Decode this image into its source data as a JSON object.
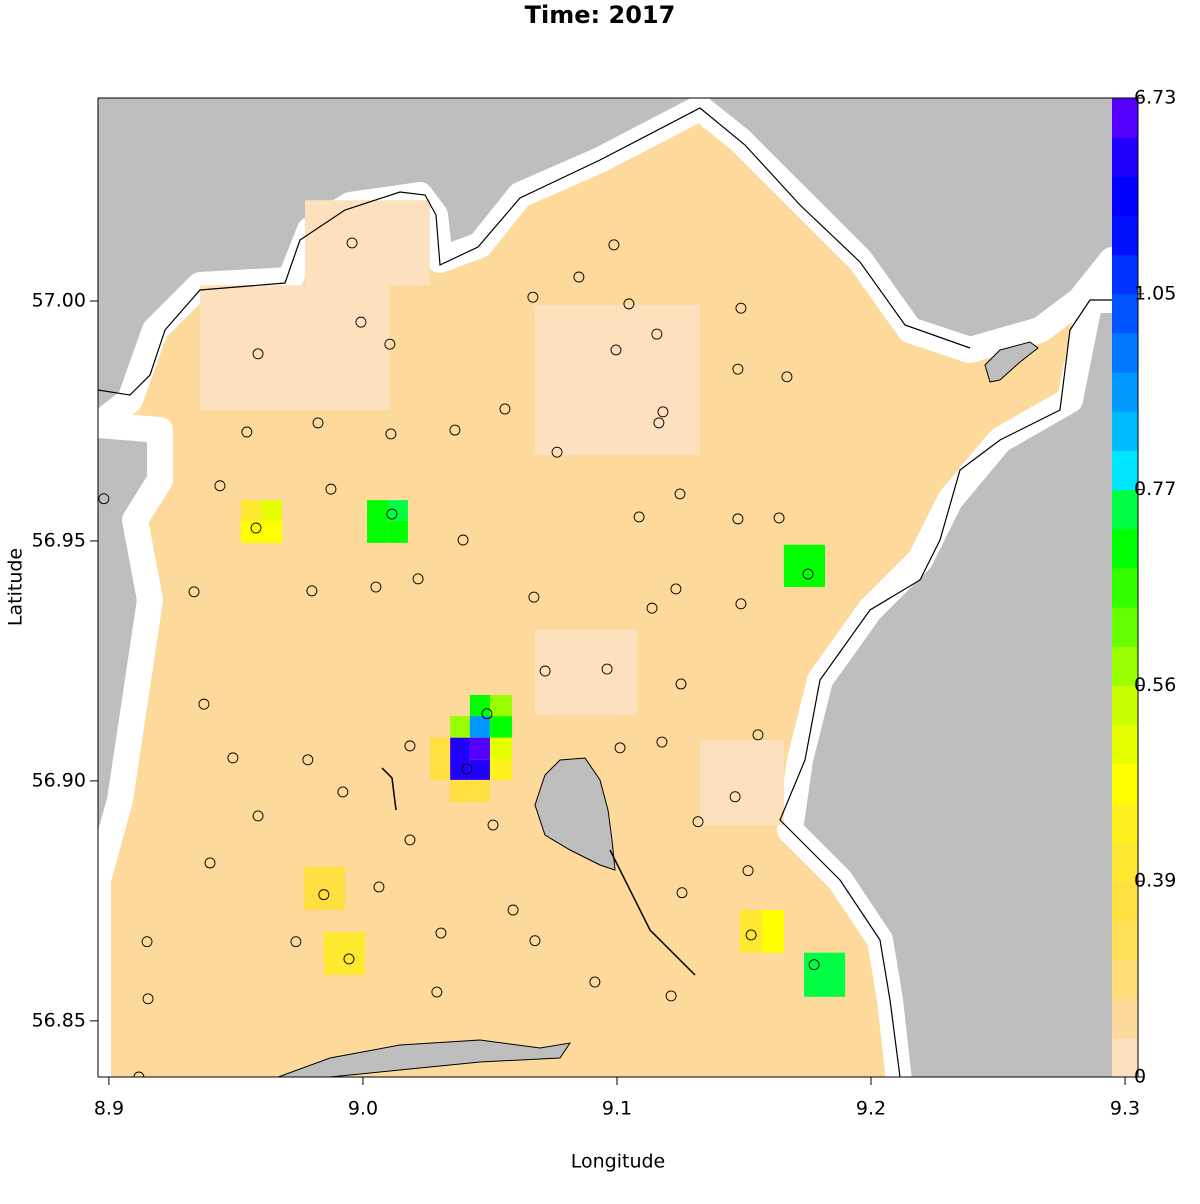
{
  "chart_data": {
    "type": "raster_map",
    "title": "Time: 2017",
    "x_label": "Longitude",
    "y_label": "Latitude",
    "xlim": [
      8.8957,
      9.3051
    ],
    "ylim": [
      56.8383,
      57.0423
    ],
    "xticks": [
      8.9,
      {
        "value": 9.0,
        "label": "9.0"
      },
      9.1,
      9.2,
      9.3
    ],
    "yticks": [
      56.85,
      {
        "value": 56.9,
        "label": "56.90"
      },
      56.95,
      {
        "value": 57.0,
        "label": "57.00"
      }
    ],
    "colorbar": {
      "ticks": [
        0,
        0.39,
        0.56,
        0.77,
        1.05,
        6.73
      ],
      "colors": [
        "#fde1bf",
        "#fdd99b",
        "#fedc78",
        "#ffdf55",
        "#ffe040",
        "#ffe830",
        "#fff020",
        "#ffff00",
        "#e6ff00",
        "#c8ff00",
        "#99ff00",
        "#66ff00",
        "#33ff00",
        "#00ff00",
        "#00ff44",
        "#00e5ff",
        "#00bbff",
        "#0099ff",
        "#0077ff",
        "#0055ff",
        "#0033ff",
        "#0011ff",
        "#0000ff",
        "#2200ff",
        "#5500ff"
      ]
    },
    "cells": [
      {
        "lon": [
          8.9358,
          9.0106
        ],
        "lat": [
          56.9773,
          57.0033
        ],
        "value": 0.02
      },
      {
        "lon": [
          8.9772,
          9.0264
        ],
        "lat": [
          57.0033,
          57.021
        ],
        "value": 0.02
      },
      {
        "lon": [
          9.0677,
          9.1327
        ],
        "lat": [
          56.9679,
          56.9992
        ],
        "value": 0.02
      },
      {
        "lon": [
          9.0677,
          9.1079
        ],
        "lat": [
          56.9138,
          56.9315
        ],
        "value": 0.02
      },
      {
        "lon": [
          9.1327,
          9.1657
        ],
        "lat": [
          56.8908,
          56.9085
        ],
        "value": 0.02
      },
      {
        "lon": [
          8.952,
          8.9602
        ],
        "lat": [
          56.9542,
          56.9585
        ],
        "value": 0.42
      },
      {
        "lon": [
          8.9602,
          8.9681
        ],
        "lat": [
          56.9542,
          56.9585
        ],
        "value": 0.52
      },
      {
        "lon": [
          8.952,
          8.9602
        ],
        "lat": [
          56.9496,
          56.9542
        ],
        "value": 0.47
      },
      {
        "lon": [
          8.9602,
          8.9681
        ],
        "lat": [
          56.9496,
          56.9542
        ],
        "value": 0.47
      },
      {
        "lon": [
          9.0016,
          9.0098
        ],
        "lat": [
          56.9496,
          56.9585
        ],
        "value": 0.72
      },
      {
        "lon": [
          9.0098,
          9.0177
        ],
        "lat": [
          56.9542,
          56.9585
        ],
        "value": 0.75
      },
      {
        "lon": [
          9.0098,
          9.0177
        ],
        "lat": [
          56.9496,
          56.9542
        ],
        "value": 0.7
      },
      {
        "lon": [
          9.1657,
          9.1819
        ],
        "lat": [
          56.9404,
          56.9492
        ],
        "value": 0.72
      },
      {
        "lon": [
          9.0421,
          9.05
        ],
        "lat": [
          56.9135,
          56.9179
        ],
        "value": 0.7
      },
      {
        "lon": [
          9.05,
          9.0587
        ],
        "lat": [
          56.9135,
          56.9179
        ],
        "value": 0.6
      },
      {
        "lon": [
          9.0343,
          9.0421
        ],
        "lat": [
          56.909,
          56.9135
        ],
        "value": 0.6
      },
      {
        "lon": [
          9.0421,
          9.05
        ],
        "lat": [
          56.909,
          56.9135
        ],
        "value": 0.93
      },
      {
        "lon": [
          9.05,
          9.0587
        ],
        "lat": [
          56.909,
          56.9135
        ],
        "value": 0.72
      },
      {
        "lon": [
          9.0343,
          9.0421
        ],
        "lat": [
          56.9002,
          56.909
        ],
        "value": 5.0
      },
      {
        "lon": [
          9.0421,
          9.05
        ],
        "lat": [
          56.9044,
          56.909
        ],
        "value": 6.5
      },
      {
        "lon": [
          9.0421,
          9.05
        ],
        "lat": [
          56.9002,
          56.9044
        ],
        "value": 5.0
      },
      {
        "lon": [
          9.0264,
          9.0343
        ],
        "lat": [
          56.9002,
          56.909
        ],
        "value": 0.38
      },
      {
        "lon": [
          9.05,
          9.0587
        ],
        "lat": [
          56.9044,
          56.909
        ],
        "value": 0.52
      },
      {
        "lon": [
          9.05,
          9.0587
        ],
        "lat": [
          56.9002,
          56.9044
        ],
        "value": 0.44
      },
      {
        "lon": [
          9.0343,
          9.05
        ],
        "lat": [
          56.8956,
          56.9002
        ],
        "value": 0.33
      },
      {
        "lon": [
          8.9768,
          8.9929
        ],
        "lat": [
          56.8731,
          56.8821
        ],
        "value": 0.37
      },
      {
        "lon": [
          8.9846,
          9.0008
        ],
        "lat": [
          56.8596,
          56.8685
        ],
        "value": 0.4
      },
      {
        "lon": [
          9.1484,
          9.1571
        ],
        "lat": [
          56.8642,
          56.8731
        ],
        "value": 0.42
      },
      {
        "lon": [
          9.1571,
          9.1657
        ],
        "lat": [
          56.8642,
          56.8731
        ],
        "value": 0.46
      },
      {
        "lon": [
          9.1736,
          9.1898
        ],
        "lat": [
          56.855,
          56.8642
        ],
        "value": 0.75
      }
    ],
    "stations": {
      "lon": [
        8.9957,
        9.0988,
        9.085,
        9.0669,
        9.1047,
        9.1488,
        8.9992,
        9.0106,
        9.0996,
        9.1157,
        8.9587,
        9.1476,
        9.1669,
        9.0559,
        9.1181,
        9.1165,
        8.9823,
        9.0362,
        8.9543,
        9.011,
        9.0764,
        8.9437,
        8.9874,
        8.898,
        9.1248,
        9.1087,
        9.1476,
        9.1638,
        9.0114,
        8.9579,
        9.0394,
        9.1752,
        9.0217,
        9.0051,
        8.9799,
        8.9335,
        9.0673,
        9.1232,
        9.1138,
        9.1488,
        9.0717,
        9.0961,
        9.1252,
        8.9374,
        9.0488,
        9.0185,
        9.1012,
        9.1177,
        9.1555,
        8.9488,
        8.9783,
        9.0409,
        8.9921,
        9.1465,
        8.9587,
        9.1319,
        9.0512,
        9.0185,
        8.9398,
        9.1516,
        8.9846,
        9.0063,
        9.1256,
        9.0591,
        9.0307,
        9.1528,
        8.915,
        8.9736,
        9.0677,
        9.1776,
        8.9945,
        9.0913,
        9.0291,
        9.1213,
        8.9154,
        8.9118
      ],
      "lat": [
        57.0121,
        57.0117,
        57.005,
        57.0008,
        56.9994,
        56.9985,
        56.9956,
        56.991,
        56.9898,
        56.9931,
        56.989,
        56.9858,
        56.9842,
        56.9775,
        56.9769,
        56.9746,
        56.9746,
        56.9731,
        56.9727,
        56.9723,
        56.9685,
        56.9615,
        56.9608,
        56.9588,
        56.9598,
        56.955,
        56.9546,
        56.9548,
        56.9556,
        56.9527,
        56.9502,
        56.9431,
        56.9421,
        56.9404,
        56.9396,
        56.9394,
        56.9383,
        56.94,
        56.936,
        56.9369,
        56.9229,
        56.9233,
        56.9202,
        56.916,
        56.914,
        56.9073,
        56.9069,
        56.9081,
        56.9096,
        56.9048,
        56.9044,
        56.9025,
        56.8977,
        56.8967,
        56.8927,
        56.8915,
        56.8908,
        56.8877,
        56.8829,
        56.8813,
        56.8763,
        56.8779,
        56.8767,
        56.8731,
        56.8683,
        56.8679,
        56.8665,
        56.8665,
        56.8667,
        56.8617,
        56.8629,
        56.8581,
        56.856,
        56.8552,
        56.8546,
        56.8383
      ]
    }
  }
}
